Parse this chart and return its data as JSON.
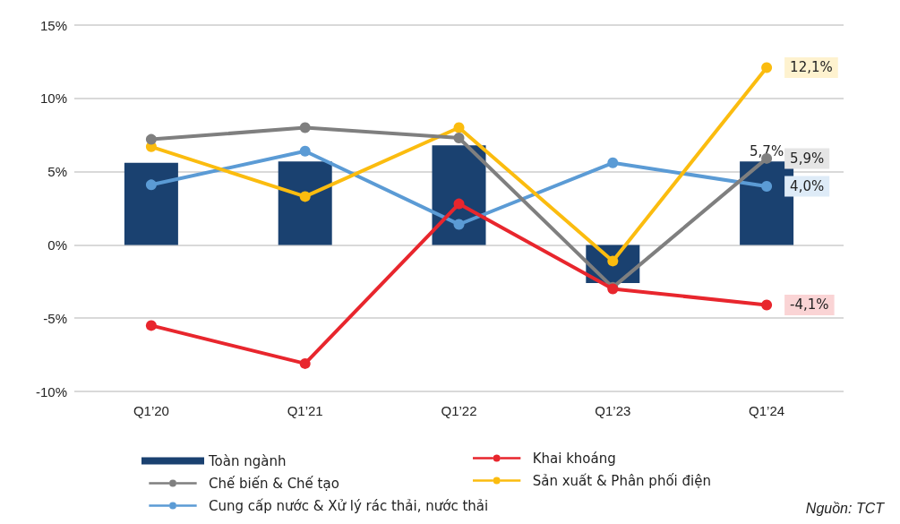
{
  "chart_data": {
    "type": "line",
    "categories": [
      "Q1’20",
      "Q1’21",
      "Q1’22",
      "Q1’23",
      "Q1’24"
    ],
    "series": [
      {
        "name": "Toàn ngành",
        "type": "bar",
        "color": "#1a4170",
        "values": [
          5.6,
          5.7,
          6.8,
          -2.6,
          5.7
        ],
        "value_labels": [
          null,
          null,
          null,
          null,
          "5,7%"
        ]
      },
      {
        "name": "Khai khoáng",
        "color": "#e8262d",
        "values": [
          -5.5,
          -8.1,
          2.8,
          -3.0,
          -4.1
        ],
        "value_labels": [
          null,
          null,
          null,
          null,
          "-4,1%"
        ]
      },
      {
        "name": "Chế biến & Chế tạo",
        "color": "#7f7f7f",
        "values": [
          7.2,
          8.0,
          7.3,
          -2.9,
          5.9
        ],
        "value_labels": [
          null,
          null,
          null,
          null,
          "5,9%"
        ]
      },
      {
        "name": "Sản xuất & Phân phối điện",
        "color": "#fbbc0f",
        "values": [
          6.7,
          3.3,
          8.0,
          -1.1,
          12.1
        ],
        "value_labels": [
          null,
          null,
          null,
          null,
          "12,1%"
        ]
      },
      {
        "name": "Cung cấp nước & Xử lý rác thải, nước thải",
        "color": "#5b9bd5",
        "values": [
          4.1,
          6.4,
          1.4,
          5.6,
          4.0
        ],
        "value_labels": [
          null,
          null,
          null,
          null,
          "4,0%"
        ]
      }
    ],
    "ylim": [
      -10,
      15
    ],
    "yticks": [
      {
        "value": -10,
        "label": "-10%"
      },
      {
        "value": -5,
        "label": "-5%"
      },
      {
        "value": 0,
        "label": "0%"
      },
      {
        "value": 5,
        "label": "5%"
      },
      {
        "value": 10,
        "label": "10%"
      },
      {
        "value": 15,
        "label": "15%"
      }
    ],
    "grid": "y",
    "legend": "bottom",
    "marker": "circle",
    "line_style": "solid",
    "annotations": [
      "Nguồn: TCT"
    ]
  }
}
